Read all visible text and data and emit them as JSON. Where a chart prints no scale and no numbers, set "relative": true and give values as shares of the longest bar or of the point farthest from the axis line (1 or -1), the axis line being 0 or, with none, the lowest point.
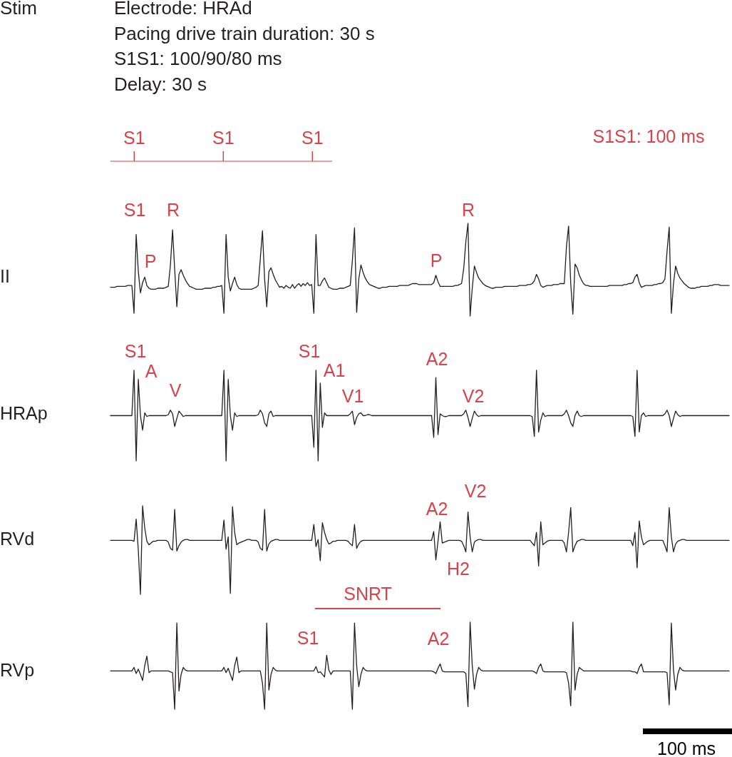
{
  "chart_data": [
    {
      "type": "bar",
      "title": "Stim",
      "subtitle": "Electrode: HRAd\nPacing drive train duration: 30 s\nS1S1: 100/90/80 ms\nDelay: 30 s",
      "relative": true,
      "categories": [
        "S1",
        "S1",
        "S1"
      ],
      "series": [
        {
          "color": "#d8434a",
          "values": [
            1,
            1,
            1
          ]
        }
      ],
      "annotations": [
        "S1S1: 100 ms"
      ]
    },
    {
      "type": "line",
      "ylabel": "II",
      "relative": true,
      "categories": [
        null,
        null,
        null,
        null,
        null,
        null,
        null,
        null,
        null,
        null,
        null,
        null,
        null,
        null,
        null,
        null,
        null,
        null,
        null,
        null,
        null,
        null,
        null,
        null,
        null,
        null,
        null,
        null,
        null,
        null,
        null,
        null,
        null,
        null,
        null,
        null,
        null,
        null,
        null,
        null,
        null,
        null,
        null,
        null,
        null,
        null,
        null,
        null,
        null,
        null,
        null,
        null,
        null,
        null,
        null,
        null,
        null,
        null,
        null,
        null,
        null,
        null,
        null,
        null,
        null,
        null,
        null,
        null,
        null,
        null,
        null,
        null,
        null,
        null,
        null,
        null,
        null,
        null,
        null,
        null,
        null,
        null,
        null,
        null,
        null,
        null,
        null,
        null,
        null,
        null,
        null,
        null,
        null,
        null,
        null,
        null,
        null,
        null,
        null,
        null,
        null,
        null,
        null,
        null,
        null,
        null,
        null,
        null,
        null,
        null,
        null,
        null,
        null,
        null,
        null,
        null,
        null,
        null,
        null,
        null,
        null,
        null,
        null,
        null,
        null,
        null,
        null,
        null,
        null,
        null,
        null,
        null,
        null,
        null,
        null,
        null,
        null,
        null,
        null,
        null,
        null,
        null,
        null,
        null,
        null,
        null,
        null,
        null,
        null,
        null,
        null,
        null,
        null,
        null,
        null,
        null,
        null,
        null,
        null,
        null,
        null,
        null,
        null,
        null,
        null,
        null,
        null,
        null,
        null,
        null,
        null,
        null,
        null,
        null,
        null,
        null,
        null,
        null,
        null,
        null,
        null,
        null,
        null,
        null,
        null,
        null,
        null,
        null,
        null,
        null,
        null,
        null,
        null,
        null,
        null,
        null,
        null,
        null,
        null,
        null,
        null,
        null,
        null,
        null,
        null,
        null,
        null,
        null,
        null,
        null,
        null,
        null,
        null,
        null,
        null,
        null,
        null,
        null,
        null,
        null,
        null,
        null,
        null,
        null,
        null,
        null,
        null,
        null,
        null,
        null,
        null,
        null,
        null,
        null,
        null,
        null,
        null,
        null,
        null,
        null,
        null,
        null,
        null,
        null,
        null,
        null,
        null,
        null,
        null,
        null,
        null,
        null,
        null,
        null,
        null,
        null,
        null,
        null,
        null,
        null,
        null,
        null,
        null,
        null,
        null,
        null,
        null,
        null,
        null,
        null,
        null,
        null,
        null,
        null,
        null,
        null,
        null,
        null,
        null,
        null,
        null,
        null,
        null,
        null,
        null,
        null,
        null,
        null,
        null,
        null,
        null
      ],
      "series": [
        {
          "color": "#231f20",
          "values": [
            0.31,
            0.31,
            0.31,
            0.32,
            0.32,
            0.32,
            0.32,
            0.32,
            0.33,
            0.33,
            0.33,
            0.03,
            0.88,
            0.48,
            0.25,
            0.36,
            0.42,
            0.33,
            0.3,
            0.29,
            0.29,
            0.29,
            0.3,
            0.3,
            0.3,
            0.3,
            0.31,
            0.32,
            0.55,
            0.93,
            0.5,
            0.1,
            0.45,
            0.5,
            0.44,
            0.39,
            0.35,
            0.32,
            0.31,
            0.3,
            0.29,
            0.29,
            0.29,
            0.29,
            0.3,
            0.3,
            0.3,
            0.3,
            0.31,
            0.31,
            0.32,
            0.32,
            0.33,
            0.03,
            0.88,
            0.42,
            0.27,
            0.35,
            0.42,
            0.34,
            0.3,
            0.29,
            0.29,
            0.29,
            0.29,
            0.29,
            0.29,
            0.3,
            0.31,
            0.33,
            0.62,
            0.92,
            0.4,
            0.1,
            0.48,
            0.52,
            0.45,
            0.39,
            0.35,
            0.31,
            0.32,
            0.3,
            0.33,
            0.31,
            0.3,
            0.34,
            0.3,
            0.33,
            0.35,
            0.32,
            0.35,
            0.33,
            0.36,
            0.33,
            0.34,
            0.03,
            0.88,
            0.33,
            0.33,
            0.38,
            0.41,
            0.36,
            0.31,
            0.3,
            0.29,
            0.29,
            0.29,
            0.3,
            0.3,
            0.3,
            0.31,
            0.32,
            0.33,
            0.6,
            0.95,
            0.04,
            0.4,
            0.55,
            0.47,
            0.41,
            0.37,
            0.34,
            0.33,
            0.32,
            0.31,
            0.3,
            0.3,
            0.31,
            0.31,
            0.31,
            0.32,
            0.32,
            0.32,
            0.32,
            0.32,
            0.33,
            0.33,
            0.33,
            0.33,
            0.33,
            0.34,
            0.35,
            0.35,
            0.35,
            0.34,
            0.34,
            0.34,
            0.34,
            0.34,
            0.34,
            0.34,
            0.36,
            0.44,
            0.37,
            0.32,
            0.32,
            0.32,
            0.32,
            0.32,
            0.32,
            0.32,
            0.33,
            0.33,
            0.34,
            0.35,
            0.51,
            0.8,
            1,
            0,
            0.3,
            0.54,
            0.47,
            0.41,
            0.38,
            0.35,
            0.33,
            0.32,
            0.31,
            0.3,
            0.3,
            0.31,
            0.31,
            0.31,
            0.31,
            0.32,
            0.32,
            0.32,
            0.32,
            0.32,
            0.32,
            0.32,
            0.33,
            0.33,
            0.33,
            0.33,
            0.34,
            0.34,
            0.35,
            0.38,
            0.45,
            0.4,
            0.33,
            0.31,
            0.32,
            0.33,
            0.33,
            0.33,
            0.34,
            0.34,
            0.34,
            0.35,
            0.35,
            0.35,
            0.75,
            0.97,
            0.35,
            0.02,
            0.56,
            0.52,
            0.44,
            0.39,
            0.35,
            0.33,
            0.33,
            0.32,
            0.32,
            0.32,
            0.32,
            0.32,
            0.32,
            0.32,
            0.32,
            0.32,
            0.33,
            0.33,
            0.33,
            0.33,
            0.33,
            0.33,
            0.33,
            0.34,
            0.34,
            0.35,
            0.35,
            0.36,
            0.42,
            0.45,
            0.36,
            0.31,
            0.32,
            0.33,
            0.33,
            0.33,
            0.33,
            0.34,
            0.34,
            0.35,
            0.35,
            0.36,
            0.4,
            0.7,
            0.96,
            0.03,
            0.35,
            0.54,
            0.46,
            0.41,
            0.38,
            0.35,
            0.33,
            0.31,
            0.3,
            0.3,
            0.3,
            0.31,
            0.31,
            0.32,
            0.32,
            0.32,
            0.32,
            0.33,
            0.33,
            0.34,
            0.34,
            0.34,
            0.33,
            0.33,
            0.33,
            0.33,
            0.33,
            null
          ]
        }
      ],
      "annotations": [
        "S1",
        "R",
        "P",
        "P",
        "R"
      ]
    },
    {
      "type": "line",
      "ylabel": "HRAp",
      "relative": true,
      "categories": [
        null,
        null,
        null,
        null,
        null,
        null,
        null,
        null,
        null,
        null,
        null,
        null,
        null,
        null,
        null,
        null,
        null,
        null,
        null,
        null,
        null,
        null,
        null,
        null,
        null,
        null,
        null,
        null,
        null,
        null,
        null,
        null,
        null,
        null,
        null,
        null,
        null,
        null,
        null,
        null,
        null,
        null,
        null,
        null,
        null,
        null,
        null,
        null,
        null,
        null,
        null,
        null,
        null,
        null,
        null,
        null,
        null,
        null,
        null,
        null,
        null,
        null,
        null,
        null,
        null,
        null,
        null,
        null,
        null,
        null,
        null,
        null,
        null,
        null,
        null,
        null,
        null,
        null,
        null,
        null,
        null,
        null,
        null,
        null,
        null,
        null,
        null,
        null,
        null,
        null,
        null,
        null,
        null,
        null,
        null,
        null,
        null,
        null,
        null,
        null,
        null,
        null,
        null,
        null,
        null,
        null,
        null,
        null,
        null,
        null,
        null,
        null,
        null,
        null,
        null,
        null,
        null,
        null,
        null,
        null,
        null,
        null,
        null,
        null,
        null,
        null,
        null,
        null,
        null,
        null,
        null,
        null,
        null,
        null,
        null,
        null,
        null,
        null,
        null,
        null,
        null,
        null,
        null,
        null,
        null,
        null,
        null,
        null,
        null,
        null,
        null,
        null,
        null,
        null,
        null,
        null,
        null,
        null,
        null,
        null,
        null,
        null,
        null,
        null,
        null,
        null,
        null,
        null,
        null,
        null,
        null,
        null,
        null,
        null,
        null,
        null,
        null,
        null,
        null,
        null,
        null,
        null,
        null,
        null,
        null,
        null,
        null,
        null,
        null,
        null,
        null,
        null,
        null,
        null,
        null,
        null,
        null,
        null,
        null,
        null,
        null,
        null,
        null,
        null,
        null,
        null,
        null,
        null,
        null,
        null,
        null,
        null,
        null,
        null,
        null,
        null,
        null,
        null,
        null,
        null,
        null,
        null,
        null,
        null,
        null,
        null,
        null,
        null,
        null,
        null,
        null,
        null,
        null,
        null,
        null,
        null,
        null,
        null,
        null,
        null,
        null,
        null,
        null,
        null,
        null,
        null,
        null,
        null,
        null,
        null,
        null,
        null,
        null,
        null,
        null,
        null,
        null,
        null,
        null,
        null,
        null,
        null,
        null,
        null,
        null,
        null,
        null,
        null,
        null,
        null,
        null,
        null,
        null,
        null,
        null,
        null,
        null,
        null,
        null,
        null,
        null,
        null,
        null,
        null,
        null,
        null,
        null,
        null,
        null,
        null,
        null
      ],
      "series": [
        {
          "color": "#231f20",
          "values": [
            0.5,
            0.5,
            0.5,
            0.5,
            0.5,
            0.5,
            0.5,
            0.5,
            0.5,
            0.5,
            0.5,
            1,
            0,
            0.9,
            0.5,
            0.34,
            0.53,
            0.49,
            0.5,
            0.5,
            0.5,
            0.5,
            0.5,
            0.5,
            0.5,
            0.5,
            0.5,
            0.51,
            0.56,
            0.52,
            0.38,
            0.47,
            0.55,
            0.52,
            0.49,
            0.5,
            0.5,
            0.5,
            0.5,
            0.5,
            0.5,
            0.5,
            0.5,
            0.5,
            0.5,
            0.5,
            0.5,
            0.5,
            0.5,
            0.5,
            0.5,
            0.5,
            0.5,
            1,
            0,
            0.9,
            0.5,
            0.34,
            0.53,
            0.49,
            0.5,
            0.5,
            0.5,
            0.5,
            0.5,
            0.5,
            0.5,
            0.5,
            0.5,
            0.51,
            0.56,
            0.52,
            0.42,
            0.38,
            0.52,
            0.55,
            0.49,
            0.5,
            0.5,
            0.5,
            0.5,
            0.5,
            0.5,
            0.5,
            0.5,
            0.5,
            0.5,
            0.5,
            0.5,
            0.5,
            0.5,
            0.5,
            0.5,
            0.5,
            0.5,
            0.15,
            1,
            0,
            0.86,
            0.37,
            0.53,
            0.5,
            0.5,
            0.5,
            0.5,
            0.5,
            0.5,
            0.5,
            0.5,
            0.5,
            0.5,
            0.5,
            0.52,
            0.55,
            0.4,
            0.48,
            0.52,
            0.53,
            0.5,
            0.5,
            0.51,
            0.51,
            0.5,
            0.5,
            0.5,
            0.5,
            0.5,
            0.5,
            0.5,
            0.5,
            0.5,
            0.5,
            0.5,
            0.5,
            0.5,
            0.5,
            0.5,
            0.5,
            0.5,
            0.5,
            0.5,
            0.5,
            0.5,
            0.5,
            0.5,
            0.5,
            0.5,
            0.5,
            0.5,
            0.5,
            0.5,
            0.26,
            0.92,
            0.29,
            0.52,
            0.5,
            0.49,
            0.49,
            0.5,
            0.5,
            0.5,
            0.5,
            0.5,
            0.5,
            0.5,
            0.52,
            0.56,
            0.48,
            0.38,
            0.47,
            0.55,
            0.51,
            0.49,
            0.5,
            0.5,
            0.5,
            0.5,
            0.5,
            0.5,
            0.5,
            0.5,
            0.5,
            0.5,
            0.5,
            0.5,
            0.5,
            0.5,
            0.5,
            0.5,
            0.5,
            0.5,
            0.5,
            0.5,
            0.5,
            0.5,
            0.5,
            0.5,
            0.49,
            0.27,
            1,
            0.32,
            0.45,
            0.53,
            0.49,
            0.5,
            0.5,
            0.5,
            0.5,
            0.5,
            0.5,
            0.5,
            0.5,
            0.52,
            0.56,
            0.5,
            0.42,
            0.38,
            0.5,
            0.55,
            0.5,
            0.49,
            0.5,
            0.5,
            0.5,
            0.5,
            0.5,
            0.5,
            0.5,
            0.5,
            0.5,
            0.5,
            0.5,
            0.5,
            0.5,
            0.5,
            0.5,
            0.5,
            0.5,
            0.5,
            0.5,
            0.5,
            0.5,
            0.5,
            0.5,
            0.49,
            0.27,
            1,
            0.32,
            0.5,
            0.53,
            0.49,
            0.5,
            0.5,
            0.5,
            0.5,
            0.5,
            0.5,
            0.5,
            0.5,
            0.52,
            0.56,
            0.5,
            0.38,
            0.47,
            0.55,
            0.51,
            0.49,
            0.5,
            0.5,
            0.5,
            0.5,
            0.5,
            0.5,
            0.5,
            0.5,
            0.5,
            0.5,
            0.5,
            0.5,
            0.5,
            0.5,
            0.5,
            0.5,
            0.5,
            0.5,
            0.5,
            0.5,
            0.5,
            0.5,
            0.5,
            null
          ]
        }
      ],
      "annotations": [
        "S1",
        "A",
        "V",
        "S1",
        "A1",
        "V1",
        "A2",
        "V2"
      ]
    },
    {
      "type": "line",
      "ylabel": "RVd",
      "relative": true,
      "categories": [
        null,
        null,
        null,
        null,
        null,
        null,
        null,
        null,
        null,
        null,
        null,
        null,
        null,
        null,
        null,
        null,
        null,
        null,
        null,
        null,
        null,
        null,
        null,
        null,
        null,
        null,
        null,
        null,
        null,
        null,
        null,
        null,
        null,
        null,
        null,
        null,
        null,
        null,
        null,
        null,
        null,
        null,
        null,
        null,
        null,
        null,
        null,
        null,
        null,
        null,
        null,
        null,
        null,
        null,
        null,
        null,
        null,
        null,
        null,
        null,
        null,
        null,
        null,
        null,
        null,
        null,
        null,
        null,
        null,
        null,
        null,
        null,
        null,
        null,
        null,
        null,
        null,
        null,
        null,
        null,
        null,
        null,
        null,
        null,
        null,
        null,
        null,
        null,
        null,
        null,
        null,
        null,
        null,
        null,
        null,
        null,
        null,
        null,
        null,
        null,
        null,
        null,
        null,
        null,
        null,
        null,
        null,
        null,
        null,
        null,
        null,
        null,
        null,
        null,
        null,
        null,
        null,
        null,
        null,
        null,
        null,
        null,
        null,
        null,
        null,
        null,
        null,
        null,
        null,
        null,
        null,
        null,
        null,
        null,
        null,
        null,
        null,
        null,
        null,
        null,
        null,
        null,
        null,
        null,
        null,
        null,
        null,
        null,
        null,
        null,
        null,
        null,
        null,
        null,
        null,
        null,
        null,
        null,
        null,
        null,
        null,
        null,
        null,
        null,
        null,
        null,
        null,
        null,
        null,
        null,
        null,
        null,
        null,
        null,
        null,
        null,
        null,
        null,
        null,
        null,
        null,
        null,
        null,
        null,
        null,
        null,
        null,
        null,
        null,
        null,
        null,
        null,
        null,
        null,
        null,
        null,
        null,
        null,
        null,
        null,
        null,
        null,
        null,
        null,
        null,
        null,
        null,
        null,
        null,
        null,
        null,
        null,
        null,
        null,
        null,
        null,
        null,
        null,
        null,
        null,
        null,
        null,
        null,
        null,
        null,
        null,
        null,
        null,
        null,
        null,
        null,
        null,
        null,
        null,
        null,
        null,
        null,
        null,
        null,
        null,
        null,
        null,
        null,
        null,
        null,
        null,
        null,
        null,
        null,
        null,
        null,
        null,
        null,
        null,
        null,
        null,
        null,
        null,
        null,
        null,
        null,
        null,
        null,
        null,
        null,
        null,
        null,
        null,
        null,
        null,
        null,
        null,
        null,
        null,
        null,
        null,
        null,
        null,
        null,
        null,
        null,
        null,
        null,
        null,
        null,
        null,
        null,
        null,
        null,
        null,
        null
      ],
      "series": [
        {
          "color": "#231f20",
          "values": [
            0.61,
            0.61,
            0.61,
            0.61,
            0.61,
            0.61,
            0.61,
            0.61,
            0.61,
            0.61,
            0.61,
            0.6,
            0.85,
            0.5,
            0,
            1,
            0.75,
            0.6,
            0.56,
            0.58,
            0.6,
            0.6,
            0.61,
            0.61,
            0.61,
            0.61,
            0.61,
            0.59,
            0.52,
            0.5,
            0.96,
            0.49,
            0.55,
            0.59,
            0.61,
            0.62,
            0.62,
            0.61,
            0.61,
            0.61,
            0.61,
            0.61,
            0.61,
            0.61,
            0.61,
            0.61,
            0.61,
            0.61,
            0.61,
            0.61,
            0.61,
            0.61,
            0.61,
            0.84,
            0.51,
            0.65,
            0.01,
            0.99,
            0.7,
            0.56,
            0.58,
            0.59,
            0.6,
            0.61,
            0.62,
            0.62,
            0.61,
            0.61,
            0.61,
            0.59,
            0.52,
            0.5,
            0.96,
            0.49,
            0.57,
            0.6,
            0.61,
            0.62,
            0.62,
            0.61,
            0.61,
            0.61,
            0.61,
            0.61,
            0.61,
            0.61,
            0.61,
            0.61,
            0.61,
            0.61,
            0.61,
            0.61,
            0.61,
            0.61,
            0.61,
            0.79,
            0.54,
            0.62,
            0.38,
            0.81,
            0.7,
            0.62,
            0.57,
            0.58,
            0.6,
            0.6,
            0.61,
            0.61,
            0.61,
            0.61,
            0.61,
            0.6,
            0.57,
            0.55,
            0.79,
            0.52,
            0.57,
            0.6,
            0.61,
            0.61,
            0.61,
            0.61,
            0.61,
            0.61,
            0.61,
            0.61,
            0.61,
            0.61,
            0.61,
            0.61,
            0.61,
            0.61,
            0.61,
            0.61,
            0.61,
            0.61,
            0.61,
            0.61,
            0.61,
            0.61,
            0.61,
            0.61,
            0.61,
            0.61,
            0.61,
            0.61,
            0.61,
            0.61,
            0.61,
            0.61,
            0.61,
            0.71,
            0.39,
            0.6,
            0.82,
            0.58,
            0.59,
            0.6,
            0.61,
            0.61,
            0.61,
            0.61,
            0.61,
            0.61,
            0.6,
            0.55,
            0.48,
            0.93,
            0.65,
            0.48,
            0.59,
            0.61,
            0.62,
            0.62,
            0.61,
            0.61,
            0.61,
            0.61,
            0.61,
            0.61,
            0.61,
            0.61,
            0.61,
            0.61,
            0.61,
            0.61,
            0.61,
            0.61,
            0.61,
            0.61,
            0.61,
            0.61,
            0.61,
            0.61,
            0.61,
            0.61,
            0.61,
            0.58,
            0.55,
            0.7,
            0.32,
            0.82,
            0.56,
            0.58,
            0.6,
            0.61,
            0.61,
            0.61,
            0.61,
            0.61,
            0.61,
            0.61,
            0.58,
            0.48,
            0.7,
            0.98,
            0.48,
            0.55,
            0.6,
            0.61,
            0.62,
            0.62,
            0.61,
            0.61,
            0.61,
            0.61,
            0.61,
            0.61,
            0.61,
            0.61,
            0.61,
            0.61,
            0.61,
            0.61,
            0.61,
            0.61,
            0.61,
            0.61,
            0.61,
            0.61,
            0.61,
            0.61,
            0.61,
            0.61,
            0.55,
            0.7,
            0.3,
            0.83,
            0.65,
            0.56,
            0.58,
            0.6,
            0.61,
            0.61,
            0.61,
            0.61,
            0.61,
            0.61,
            0.61,
            0.55,
            0.48,
            0.98,
            0.65,
            0.48,
            0.57,
            0.6,
            0.61,
            0.62,
            0.62,
            0.61,
            0.61,
            0.61,
            0.61,
            0.61,
            0.61,
            0.61,
            0.61,
            0.61,
            0.61,
            0.61,
            0.61,
            0.61,
            0.61,
            0.61,
            0.61,
            0.61,
            0.61,
            0.61,
            0.61,
            0.61,
            null
          ]
        }
      ],
      "annotations": [
        "A2",
        "V2",
        "H2",
        "SNRT"
      ]
    },
    {
      "type": "line",
      "ylabel": "RVp",
      "relative": true,
      "categories": [
        null,
        null,
        null,
        null,
        null,
        null,
        null,
        null,
        null,
        null,
        null,
        null,
        null,
        null,
        null,
        null,
        null,
        null,
        null,
        null,
        null,
        null,
        null,
        null,
        null,
        null,
        null,
        null,
        null,
        null,
        null,
        null,
        null,
        null,
        null,
        null,
        null,
        null,
        null,
        null,
        null,
        null,
        null,
        null,
        null,
        null,
        null,
        null,
        null,
        null,
        null,
        null,
        null,
        null,
        null,
        null,
        null,
        null,
        null,
        null,
        null,
        null,
        null,
        null,
        null,
        null,
        null,
        null,
        null,
        null,
        null,
        null,
        null,
        null,
        null,
        null,
        null,
        null,
        null,
        null,
        null,
        null,
        null,
        null,
        null,
        null,
        null,
        null,
        null,
        null,
        null,
        null,
        null,
        null,
        null,
        null,
        null,
        null,
        null,
        null,
        null,
        null,
        null,
        null,
        null,
        null,
        null,
        null,
        null,
        null,
        null,
        null,
        null,
        null,
        null,
        null,
        null,
        null,
        null,
        null,
        null,
        null,
        null,
        null,
        null,
        null,
        null,
        null,
        null,
        null,
        null,
        null,
        null,
        null,
        null,
        null,
        null,
        null,
        null,
        null,
        null,
        null,
        null,
        null,
        null,
        null,
        null,
        null,
        null,
        null,
        null,
        null,
        null,
        null,
        null,
        null,
        null,
        null,
        null,
        null,
        null,
        null,
        null,
        null,
        null,
        null,
        null,
        null,
        null,
        null,
        null,
        null,
        null,
        null,
        null,
        null,
        null,
        null,
        null,
        null,
        null,
        null,
        null,
        null,
        null,
        null,
        null,
        null,
        null,
        null,
        null,
        null,
        null,
        null,
        null,
        null,
        null,
        null,
        null,
        null,
        null,
        null,
        null,
        null,
        null,
        null,
        null,
        null,
        null,
        null,
        null,
        null,
        null,
        null,
        null,
        null,
        null,
        null,
        null,
        null,
        null,
        null,
        null,
        null,
        null,
        null,
        null,
        null,
        null,
        null,
        null,
        null,
        null,
        null,
        null,
        null,
        null,
        null,
        null,
        null,
        null,
        null,
        null,
        null,
        null,
        null,
        null,
        null,
        null,
        null,
        null,
        null,
        null,
        null,
        null,
        null,
        null,
        null,
        null,
        null,
        null,
        null,
        null,
        null,
        null,
        null,
        null,
        null,
        null,
        null,
        null,
        null,
        null,
        null,
        null,
        null,
        null,
        null,
        null,
        null,
        null,
        null,
        null,
        null,
        null,
        null,
        null,
        null,
        null,
        null,
        null
      ],
      "series": [
        {
          "color": "#231f20",
          "values": [
            0.44,
            0.44,
            0.44,
            0.44,
            0.44,
            0.44,
            0.44,
            0.44,
            0.44,
            0.44,
            0.44,
            0.48,
            0.41,
            0.46,
            0.4,
            0.33,
            0.5,
            0.61,
            0.42,
            0.44,
            0.44,
            0.44,
            0.44,
            0.44,
            0.44,
            0.44,
            0.44,
            0.44,
            0.43,
            0.42,
            0,
            0.99,
            0.21,
            0.4,
            0.48,
            0.45,
            0.44,
            0.44,
            0.44,
            0.44,
            0.44,
            0.44,
            0.44,
            0.44,
            0.44,
            0.44,
            0.44,
            0.44,
            0.44,
            0.44,
            0.44,
            0.44,
            0.44,
            0.48,
            0.42,
            0.47,
            0.4,
            0.33,
            0.5,
            0.6,
            0.42,
            0.44,
            0.44,
            0.44,
            0.44,
            0.44,
            0.44,
            0.44,
            0.44,
            0.44,
            0.44,
            0.3,
            0,
            0.99,
            0.22,
            0.4,
            0.48,
            0.45,
            0.44,
            0.44,
            0.44,
            0.44,
            0.44,
            0.44,
            0.44,
            0.44,
            0.44,
            0.44,
            0.44,
            0.44,
            0.44,
            0.44,
            0.44,
            0.44,
            0.44,
            0.44,
            0.49,
            0.42,
            0.43,
            0.4,
            0.37,
            0.62,
            0.45,
            0.4,
            0.44,
            0.44,
            0.44,
            0.44,
            0.44,
            0.44,
            0.44,
            0.44,
            0.44,
            0,
            0.99,
            0.5,
            0.26,
            0.4,
            0.48,
            0.45,
            0.44,
            0.44,
            0.44,
            0.44,
            0.44,
            0.44,
            0.44,
            0.44,
            0.44,
            0.44,
            0.44,
            0.44,
            0.44,
            0.44,
            0.44,
            0.44,
            0.44,
            0.44,
            0.44,
            0.44,
            0.44,
            0.44,
            0.44,
            0.44,
            0.44,
            0.44,
            0.44,
            0.44,
            0.44,
            0.44,
            0.44,
            0.43,
            0.41,
            0.47,
            0.52,
            0.44,
            0.43,
            0.43,
            0.43,
            0.43,
            0.43,
            0.43,
            0.43,
            0.43,
            0.43,
            0.43,
            0.41,
            0.03,
            1,
            0.5,
            0.23,
            0.4,
            0.48,
            0.45,
            0.44,
            0.44,
            0.44,
            0.44,
            0.44,
            0.44,
            0.44,
            0.44,
            0.44,
            0.44,
            0.44,
            0.44,
            0.44,
            0.44,
            0.44,
            0.44,
            0.44,
            0.44,
            0.44,
            0.44,
            0.44,
            0.44,
            0.44,
            0.44,
            0.43,
            0.41,
            0.48,
            0.52,
            0.44,
            0.43,
            0.43,
            0.43,
            0.43,
            0.43,
            0.43,
            0.43,
            0.43,
            0.43,
            0.43,
            0.42,
            0.3,
            0.04,
            1,
            0.22,
            0.4,
            0.48,
            0.46,
            0.44,
            0.44,
            0.44,
            0.44,
            0.44,
            0.44,
            0.44,
            0.44,
            0.44,
            0.44,
            0.44,
            0.44,
            0.44,
            0.44,
            0.44,
            0.44,
            0.44,
            0.44,
            0.44,
            0.44,
            0.44,
            0.44,
            0.44,
            0.43,
            0.43,
            0.41,
            0.48,
            0.52,
            0.43,
            0.43,
            0.43,
            0.43,
            0.43,
            0.43,
            0.43,
            0.43,
            0.43,
            0.43,
            0.43,
            0.42,
            0.05,
            0.99,
            0.45,
            0.22,
            0.4,
            0.48,
            0.45,
            0.44,
            0.44,
            0.44,
            0.44,
            0.44,
            0.44,
            0.44,
            0.44,
            0.44,
            0.44,
            0.44,
            0.44,
            0.44,
            0.44,
            0.44,
            0.44,
            0.44,
            0.44,
            0.44,
            0.44,
            0.44,
            0.44,
            null
          ]
        }
      ],
      "annotations": [
        "S1",
        "A2",
        "100 ms"
      ]
    }
  ]
}
